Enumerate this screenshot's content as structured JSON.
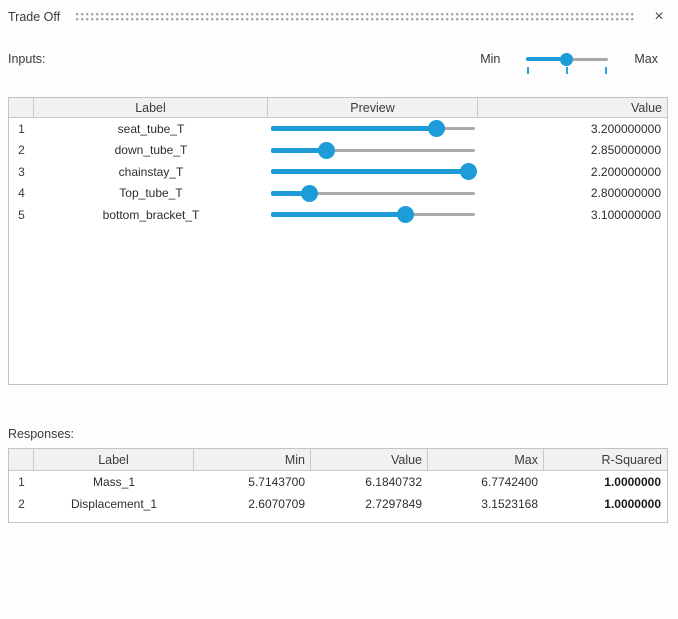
{
  "titlebar": {
    "title": "Trade Off",
    "close_icon": "×"
  },
  "colors": {
    "accent_blue": "#1e9cd7",
    "track_gray": "#a8a8a8",
    "header_bg": "#f1f1f1",
    "border": "#c3c3c3"
  },
  "inputs": {
    "section_label": "Inputs:",
    "range_slider": {
      "min_label": "Min",
      "max_label": "Max",
      "value_pct": 49
    }
  },
  "inputs_table": {
    "columns": {
      "index": "",
      "label": "Label",
      "preview": "Preview",
      "value": "Value"
    },
    "rows": [
      {
        "index": "1",
        "label": "seat_tube_T",
        "slider_pct": 81,
        "value": "3.200000000"
      },
      {
        "index": "2",
        "label": "down_tube_T",
        "slider_pct": 27,
        "value": "2.850000000"
      },
      {
        "index": "3",
        "label": "chainstay_T",
        "slider_pct": 97,
        "value": "2.200000000"
      },
      {
        "index": "4",
        "label": "Top_tube_T",
        "slider_pct": 19,
        "value": "2.800000000"
      },
      {
        "index": "5",
        "label": "bottom_bracket_T",
        "slider_pct": 66,
        "value": "3.100000000"
      }
    ]
  },
  "responses": {
    "section_label": "Responses:"
  },
  "responses_table": {
    "columns": {
      "index": "",
      "label": "Label",
      "min": "Min",
      "value": "Value",
      "max": "Max",
      "r_squared": "R-Squared"
    },
    "rows": [
      {
        "index": "1",
        "label": "Mass_1",
        "min": "5.7143700",
        "value": "6.1840732",
        "max": "6.7742400",
        "r_squared": "1.0000000"
      },
      {
        "index": "2",
        "label": "Displacement_1",
        "min": "2.6070709",
        "value": "2.7297849",
        "max": "3.1523168",
        "r_squared": "1.0000000"
      }
    ]
  }
}
